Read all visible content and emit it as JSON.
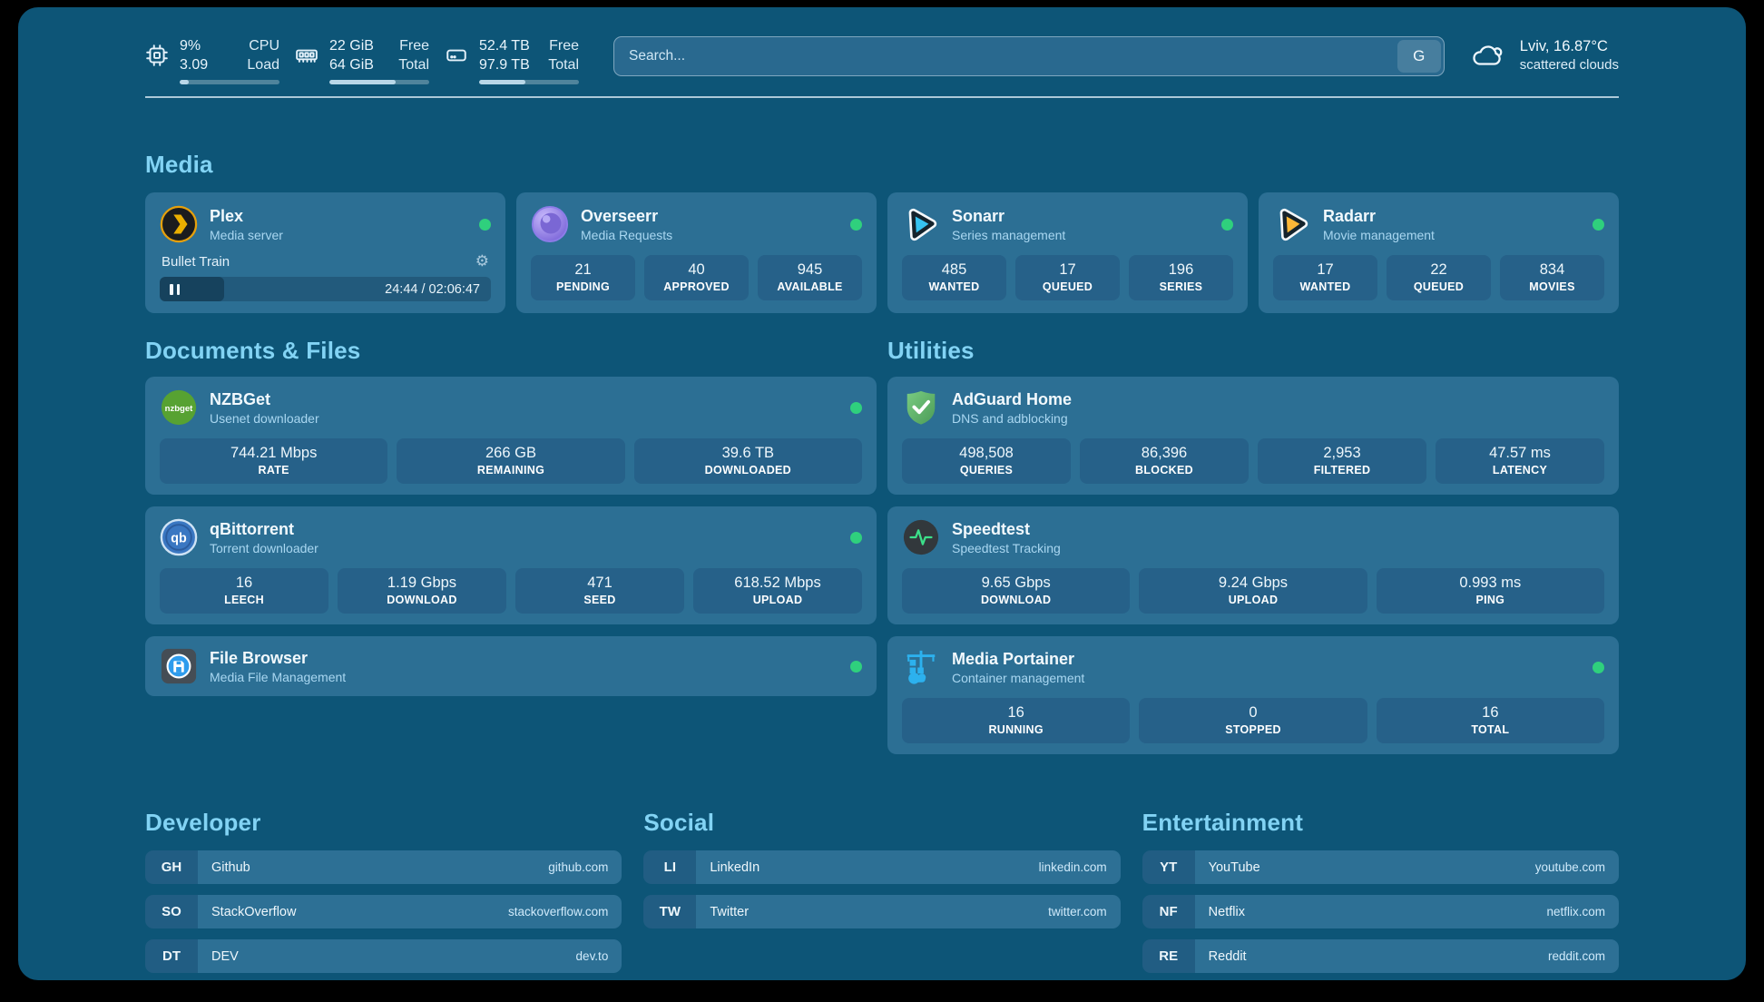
{
  "topbar": {
    "cpu": {
      "value1": "9%",
      "value2": "3.09",
      "label1": "CPU",
      "label2": "Load",
      "progress": 9
    },
    "memory": {
      "value1": "22 GiB",
      "value2": "64 GiB",
      "label1": "Free",
      "label2": "Total",
      "progress": 66
    },
    "disk": {
      "value1": "52.4 TB",
      "value2": "97.9 TB",
      "label1": "Free",
      "label2": "Total",
      "progress": 46
    },
    "search": {
      "placeholder": "Search...",
      "button": "G"
    },
    "weather": {
      "location": "Lviv, 16.87°C",
      "condition": "scattered clouds"
    }
  },
  "media": {
    "title": "Media",
    "plex": {
      "name": "Plex",
      "desc": "Media server",
      "now_playing": "Bullet Train",
      "time": "24:44 / 02:06:47",
      "progress": 19.5
    },
    "overseerr": {
      "name": "Overseerr",
      "desc": "Media Requests",
      "stats": [
        {
          "value": "21",
          "label": "PENDING"
        },
        {
          "value": "40",
          "label": "APPROVED"
        },
        {
          "value": "945",
          "label": "AVAILABLE"
        }
      ]
    },
    "sonarr": {
      "name": "Sonarr",
      "desc": "Series management",
      "stats": [
        {
          "value": "485",
          "label": "WANTED"
        },
        {
          "value": "17",
          "label": "QUEUED"
        },
        {
          "value": "196",
          "label": "SERIES"
        }
      ]
    },
    "radarr": {
      "name": "Radarr",
      "desc": "Movie management",
      "stats": [
        {
          "value": "17",
          "label": "WANTED"
        },
        {
          "value": "22",
          "label": "QUEUED"
        },
        {
          "value": "834",
          "label": "MOVIES"
        }
      ]
    }
  },
  "documents": {
    "title": "Documents & Files",
    "nzbget": {
      "name": "NZBGet",
      "desc": "Usenet downloader",
      "stats": [
        {
          "value": "744.21 Mbps",
          "label": "RATE"
        },
        {
          "value": "266 GB",
          "label": "REMAINING"
        },
        {
          "value": "39.6 TB",
          "label": "DOWNLOADED"
        }
      ]
    },
    "qbittorrent": {
      "name": "qBittorrent",
      "desc": "Torrent downloader",
      "stats": [
        {
          "value": "16",
          "label": "LEECH"
        },
        {
          "value": "1.19 Gbps",
          "label": "DOWNLOAD"
        },
        {
          "value": "471",
          "label": "SEED"
        },
        {
          "value": "618.52 Mbps",
          "label": "UPLOAD"
        }
      ]
    },
    "filebrowser": {
      "name": "File Browser",
      "desc": "Media File Management"
    }
  },
  "utilities": {
    "title": "Utilities",
    "adguard": {
      "name": "AdGuard Home",
      "desc": "DNS and adblocking",
      "stats": [
        {
          "value": "498,508",
          "label": "QUERIES"
        },
        {
          "value": "86,396",
          "label": "BLOCKED"
        },
        {
          "value": "2,953",
          "label": "FILTERED"
        },
        {
          "value": "47.57 ms",
          "label": "LATENCY"
        }
      ]
    },
    "speedtest": {
      "name": "Speedtest",
      "desc": "Speedtest Tracking",
      "stats": [
        {
          "value": "9.65 Gbps",
          "label": "DOWNLOAD"
        },
        {
          "value": "9.24 Gbps",
          "label": "UPLOAD"
        },
        {
          "value": "0.993 ms",
          "label": "PING"
        }
      ]
    },
    "portainer": {
      "name": "Media Portainer",
      "desc": "Container management",
      "stats": [
        {
          "value": "16",
          "label": "RUNNING"
        },
        {
          "value": "0",
          "label": "STOPPED"
        },
        {
          "value": "16",
          "label": "TOTAL"
        }
      ]
    }
  },
  "links": {
    "developer": {
      "title": "Developer",
      "items": [
        {
          "abbr": "GH",
          "name": "Github",
          "url": "github.com"
        },
        {
          "abbr": "SO",
          "name": "StackOverflow",
          "url": "stackoverflow.com"
        },
        {
          "abbr": "DT",
          "name": "DEV",
          "url": "dev.to"
        }
      ]
    },
    "social": {
      "title": "Social",
      "items": [
        {
          "abbr": "LI",
          "name": "LinkedIn",
          "url": "linkedin.com"
        },
        {
          "abbr": "TW",
          "name": "Twitter",
          "url": "twitter.com"
        }
      ]
    },
    "entertainment": {
      "title": "Entertainment",
      "items": [
        {
          "abbr": "YT",
          "name": "YouTube",
          "url": "youtube.com"
        },
        {
          "abbr": "NF",
          "name": "Netflix",
          "url": "netflix.com"
        },
        {
          "abbr": "RE",
          "name": "Reddit",
          "url": "reddit.com"
        }
      ]
    }
  },
  "icons": {
    "settings": "⚙"
  },
  "colors": {
    "background": "#0d5577",
    "card": "#2c6f94",
    "stat_box": "#266189",
    "status_online": "#2fd07d",
    "section_header": "#82d3f4"
  }
}
